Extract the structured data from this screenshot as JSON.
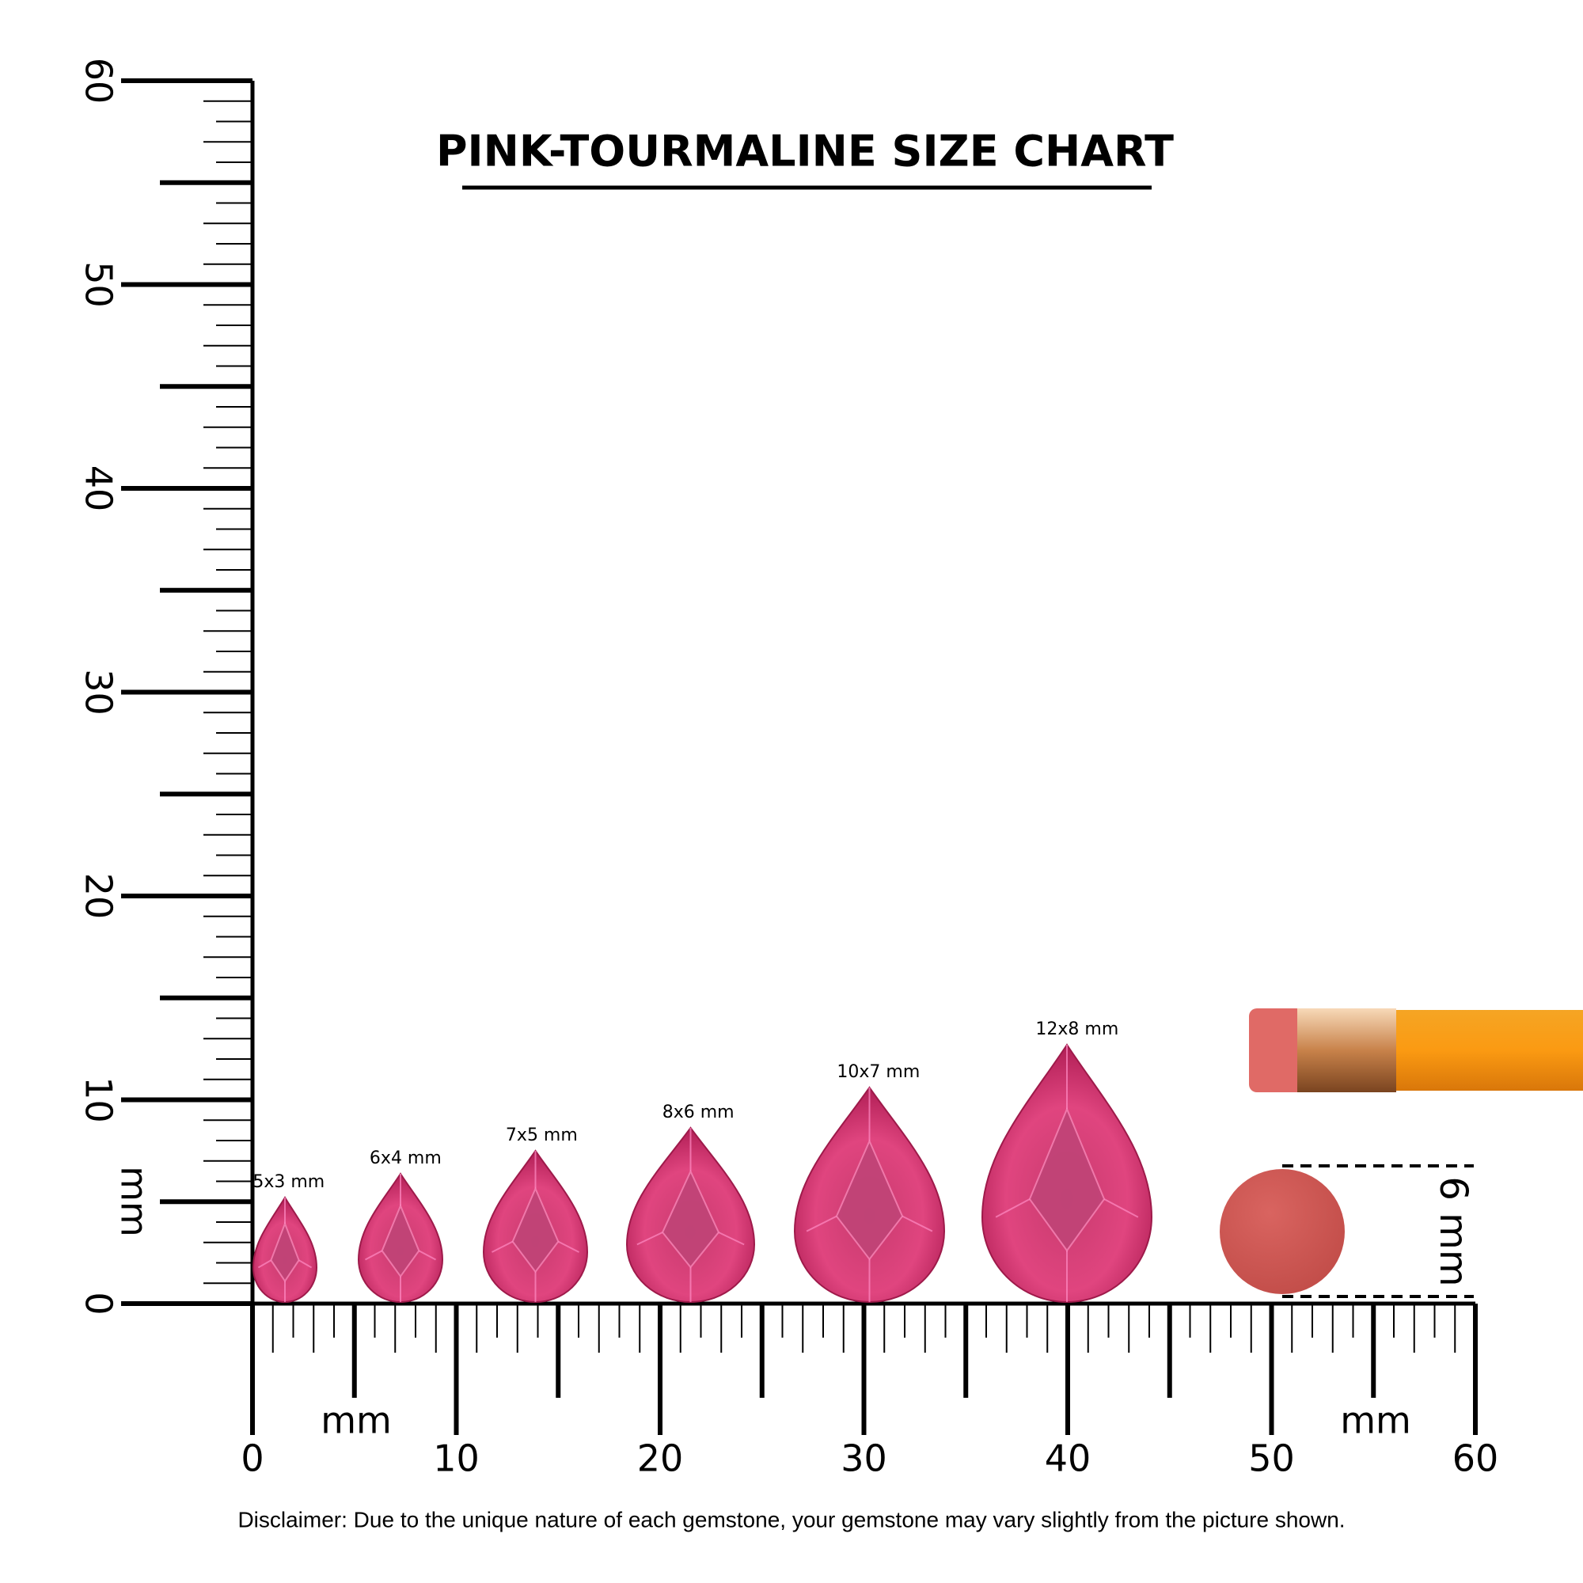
{
  "title": "PINK-TOURMALINE SIZE CHART",
  "left_ruler": {
    "labels": [
      0,
      10,
      20,
      30,
      40,
      50,
      60
    ],
    "unit": "mm"
  },
  "bottom_ruler": {
    "labels": [
      0,
      10,
      20,
      30,
      40,
      50,
      60
    ],
    "units": [
      "mm",
      "mm"
    ]
  },
  "gems": [
    {
      "label": "5x3 mm"
    },
    {
      "label": "6x4 mm"
    },
    {
      "label": "7x5 mm"
    },
    {
      "label": "8x6 mm"
    },
    {
      "label": "10x7 mm"
    },
    {
      "label": "12x8 mm"
    }
  ],
  "reference": {
    "label": "6 mm"
  },
  "disclaimer": "Disclaimer: Due to the unique nature of each gemstone, your gemstone may vary slightly from the picture shown."
}
